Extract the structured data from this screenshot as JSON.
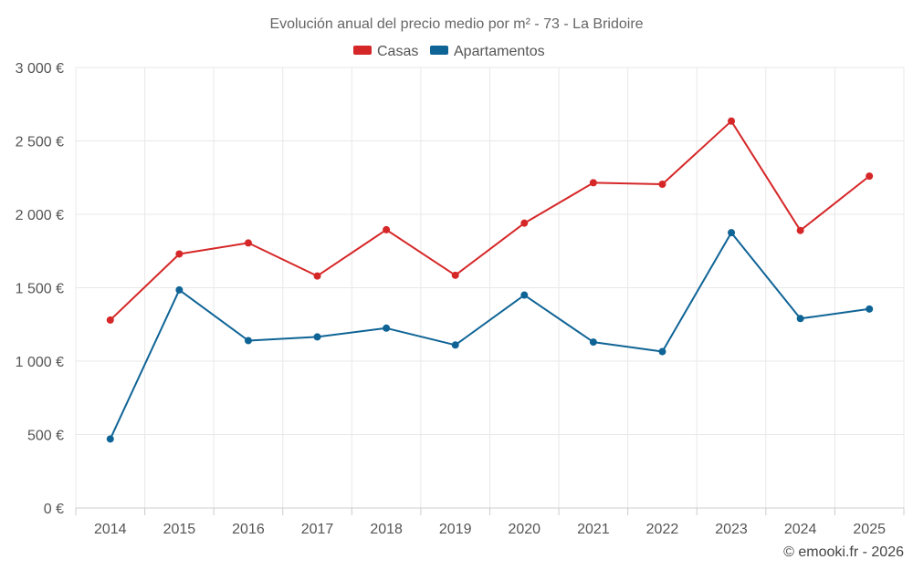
{
  "chart_data": {
    "type": "line",
    "title": "Evolución anual del precio medio por m² - 73 - La Bridoire",
    "categories": [
      "2014",
      "2015",
      "2016",
      "2017",
      "2018",
      "2019",
      "2020",
      "2021",
      "2022",
      "2023",
      "2024",
      "2025"
    ],
    "series": [
      {
        "name": "Casas",
        "color": "#d62728",
        "values": [
          1280,
          1730,
          1805,
          1580,
          1895,
          1585,
          1940,
          2215,
          2205,
          2635,
          1890,
          2260
        ]
      },
      {
        "name": "Apartamentos",
        "color": "#0f6496",
        "values": [
          470,
          1485,
          1140,
          1165,
          1225,
          1110,
          1450,
          1130,
          1065,
          1875,
          1290,
          1355
        ]
      }
    ],
    "ylim": [
      0,
      3000
    ],
    "yticks": [
      0,
      500,
      1000,
      1500,
      2000,
      2500,
      3000
    ],
    "ytick_labels": [
      "0 €",
      "500 €",
      "1 000 €",
      "1 500 €",
      "2 000 €",
      "2 500 €",
      "3 000 €"
    ],
    "xlabel": "",
    "ylabel": "",
    "legend_position": "top-center",
    "grid": true
  },
  "credit": "© emooki.fr - 2026"
}
